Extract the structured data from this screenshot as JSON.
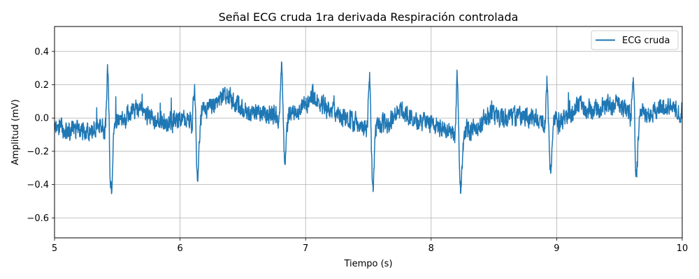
{
  "chart_data": {
    "type": "line",
    "title": "Señal ECG cruda 1ra derivada Respiración controlada",
    "xlabel": "Tiempo (s)",
    "ylabel": "Amplitud (mV)",
    "xlim": [
      5,
      10
    ],
    "ylim": [
      -0.72,
      0.55
    ],
    "xticks": [
      5,
      6,
      7,
      8,
      9,
      10
    ],
    "xtick_labels": [
      "5",
      "6",
      "7",
      "8",
      "9",
      "10"
    ],
    "yticks": [
      -0.6,
      -0.4,
      -0.2,
      0.0,
      0.2,
      0.4
    ],
    "ytick_labels": [
      "−0.6",
      "−0.4",
      "−0.2",
      "0.0",
      "0.2",
      "0.4"
    ],
    "grid": true,
    "legend_position": "top-right",
    "series": [
      {
        "name": "ECG cruda",
        "color": "#1f77b4",
        "r_peaks_s": [
          5.425,
          6.115,
          6.81,
          7.51,
          8.21,
          8.925,
          9.61
        ],
        "r_peak_mV": [
          0.35,
          0.19,
          0.34,
          0.36,
          0.37,
          0.29,
          0.22
        ],
        "s_trough_mV": [
          -0.42,
          -0.37,
          -0.29,
          -0.36,
          -0.35,
          -0.32,
          -0.38
        ],
        "baseline_noise_mV": 0.08,
        "baseline_wander_mV": 0.05,
        "sample_rate_hz": 500
      }
    ]
  }
}
